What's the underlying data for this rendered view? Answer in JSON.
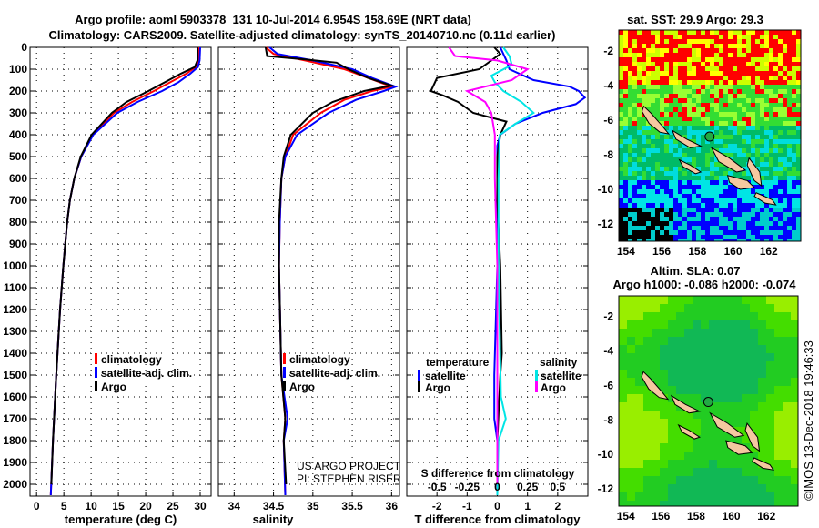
{
  "title_line1": "Argo profile: aoml 5903378_131 10-Jul-2014 6.954S 158.69E (NRT data)",
  "title_line2": "Climatology: CARS2009. Satellite-adjusted climatology: synTS_20140710.nc (0.11d earlier)",
  "colors": {
    "climatology": "#ff0000",
    "satellite": "#0000ff",
    "argo": "#000000",
    "sal_satellite": "#00e5e5",
    "sal_argo": "#ff00ff"
  },
  "depth_ticks": [
    0,
    100,
    200,
    300,
    400,
    500,
    600,
    700,
    800,
    900,
    1000,
    1100,
    1200,
    1300,
    1400,
    1500,
    1600,
    1700,
    1800,
    1900,
    2000
  ],
  "chart_data": [
    {
      "type": "line",
      "name": "temperature-profile",
      "xlabel": "temperature (deg C)",
      "ylabel": "depth",
      "xlim": [
        -1.2,
        32
      ],
      "ylim": [
        2050,
        0
      ],
      "xticks": [
        0,
        5,
        10,
        15,
        20,
        25,
        30
      ],
      "legend": [
        "climatology",
        "satellite-adj. clim.",
        "Argo"
      ],
      "series": [
        {
          "name": "climatology",
          "color": "#ff0000",
          "depth": [
            0,
            60,
            90,
            120,
            160,
            200,
            250,
            300,
            400,
            500,
            600,
            700,
            800,
            1000,
            1200,
            1500,
            1800,
            2050
          ],
          "values": [
            29.8,
            29.7,
            29.2,
            27.5,
            24.5,
            21.5,
            17.5,
            14.2,
            10.3,
            8.2,
            6.9,
            6.1,
            5.6,
            4.9,
            4.3,
            3.6,
            3.0,
            2.6
          ]
        },
        {
          "name": "satellite-adj. clim.",
          "color": "#0000ff",
          "depth": [
            0,
            60,
            90,
            120,
            160,
            200,
            250,
            300,
            400,
            500,
            600,
            700,
            800,
            1000,
            1200,
            1500,
            1800,
            2050
          ],
          "values": [
            30.0,
            29.9,
            29.6,
            28.2,
            26.0,
            23.0,
            18.5,
            14.8,
            10.4,
            8.2,
            6.9,
            6.1,
            5.6,
            4.9,
            4.3,
            3.6,
            3.0,
            2.6
          ]
        },
        {
          "name": "Argo",
          "color": "#000000",
          "depth": [
            0,
            60,
            90,
            120,
            160,
            200,
            250,
            300,
            400,
            500,
            600,
            700,
            800,
            1000,
            1200,
            1500,
            1800,
            2000
          ],
          "values": [
            29.5,
            29.5,
            29.0,
            26.5,
            23.5,
            20.5,
            16.5,
            13.8,
            10.1,
            8.1,
            6.9,
            6.1,
            5.6,
            4.9,
            4.3,
            3.6,
            3.0,
            2.7
          ]
        }
      ]
    },
    {
      "type": "line",
      "name": "salinity-profile",
      "xlabel": "salinity",
      "ylabel": "depth",
      "xlim": [
        33.8,
        36.1
      ],
      "ylim": [
        2050,
        0
      ],
      "xticks": [
        34,
        34.5,
        35,
        35.5,
        36
      ],
      "legend": [
        "climatology",
        "satellite-adj. clim.",
        "Argo"
      ],
      "annotation": [
        "US ARGO PROJECT",
        "PI: STEPHEN RISER"
      ],
      "series": [
        {
          "name": "climatology",
          "color": "#ff0000",
          "depth": [
            0,
            30,
            60,
            100,
            140,
            180,
            200,
            240,
            300,
            400,
            500,
            600,
            800,
            1000,
            1500,
            1700,
            1800,
            2050
          ],
          "values": [
            34.4,
            34.5,
            34.9,
            35.4,
            35.7,
            36.0,
            35.75,
            35.4,
            35.1,
            34.75,
            34.65,
            34.6,
            34.58,
            34.57,
            34.6,
            34.65,
            34.63,
            34.65
          ]
        },
        {
          "name": "satellite-adj. clim.",
          "color": "#0000ff",
          "depth": [
            0,
            30,
            60,
            100,
            140,
            180,
            200,
            240,
            300,
            400,
            500,
            600,
            800,
            1000,
            1500,
            1700,
            1800,
            2050
          ],
          "values": [
            34.45,
            34.55,
            35.0,
            35.5,
            35.75,
            36.05,
            35.9,
            35.55,
            35.2,
            34.8,
            34.65,
            34.6,
            34.58,
            34.57,
            34.6,
            34.68,
            34.63,
            34.65
          ]
        },
        {
          "name": "Argo",
          "color": "#000000",
          "depth": [
            0,
            40,
            55,
            70,
            100,
            140,
            175,
            200,
            250,
            300,
            400,
            500,
            600,
            800,
            1000,
            1500,
            1700,
            1800,
            2000
          ],
          "values": [
            34.4,
            34.42,
            34.9,
            35.3,
            35.45,
            35.7,
            36.0,
            35.65,
            35.25,
            35.0,
            34.72,
            34.63,
            34.6,
            34.57,
            34.57,
            34.6,
            34.65,
            34.63,
            34.66
          ]
        }
      ]
    },
    {
      "type": "line",
      "name": "difference-profile",
      "xlabel": "T difference from climatology",
      "xlabel2": "S difference from climatology",
      "xlim": [
        -3,
        3
      ],
      "ylim": [
        2050,
        0
      ],
      "xticks": [
        -2,
        -1,
        0,
        1,
        2
      ],
      "xticks_s": [
        -0.5,
        -0.25,
        0,
        0.25,
        0.5
      ],
      "s_to_t_scale": 4,
      "legend_t_title": "temperature",
      "legend_s_title": "salinity",
      "legend_t": [
        "satellite",
        "Argo"
      ],
      "legend_s": [
        "satellite",
        "Argo"
      ],
      "series": [
        {
          "name": "T satellite",
          "color": "#0000ff",
          "depth": [
            0,
            60,
            100,
            150,
            180,
            200,
            230,
            260,
            300,
            350,
            400,
            450,
            500,
            700,
            1000,
            1500,
            1700,
            1800,
            2050
          ],
          "values": [
            0.1,
            0.3,
            0.4,
            1.2,
            2.4,
            2.7,
            2.9,
            2.6,
            1.5,
            0.6,
            0.1,
            0,
            0,
            0,
            0,
            -0.1,
            -0.1,
            0,
            0
          ]
        },
        {
          "name": "T Argo",
          "color": "#000000",
          "depth": [
            0,
            30,
            60,
            100,
            140,
            170,
            200,
            220,
            250,
            300,
            340,
            400,
            500,
            700,
            1000,
            1400,
            1500,
            1800,
            2000
          ],
          "values": [
            -0.1,
            0.1,
            -0.2,
            -0.6,
            -2.0,
            -2.1,
            -2.2,
            -1.8,
            -1.3,
            -0.8,
            0.3,
            0.1,
            0,
            0,
            0.1,
            0.15,
            0.1,
            0,
            0
          ]
        },
        {
          "name": "S satellite",
          "color": "#00e5e5",
          "depth": [
            0,
            40,
            80,
            130,
            160,
            200,
            250,
            300,
            350,
            400,
            600,
            1000,
            1600,
            1700,
            1750,
            1800,
            2050
          ],
          "values": [
            0.05,
            0.1,
            0.12,
            -0.05,
            -0.02,
            0.05,
            0.2,
            0.3,
            0.15,
            0.02,
            0.01,
            0.01,
            0.03,
            0.07,
            0.04,
            0.01,
            0.0
          ]
        },
        {
          "name": "S Argo",
          "color": "#ff00ff",
          "depth": [
            0,
            40,
            60,
            100,
            150,
            200,
            250,
            300,
            400,
            600,
            1000,
            1500,
            1800,
            2000
          ],
          "values": [
            -0.4,
            -0.35,
            0.0,
            0.25,
            0.12,
            -0.25,
            -0.1,
            -0.05,
            -0.02,
            -0.02,
            0,
            0,
            0,
            0
          ]
        }
      ]
    },
    {
      "type": "heatmap",
      "name": "sst-map",
      "title": "sat. SST: 29.9 Argo: 29.3",
      "xticks": [
        154,
        156,
        158,
        160,
        162
      ],
      "yticks": [
        -2,
        -4,
        -6,
        -8,
        -10,
        -12
      ],
      "xlim": [
        153.6,
        163.8
      ],
      "ylim": [
        -13,
        -0.8
      ],
      "argo_position": {
        "lon": 158.69,
        "lat": -6.954
      }
    },
    {
      "type": "heatmap",
      "name": "sla-map",
      "title1": "Altim. SLA: 0.07",
      "title2": "Argo h1000: -0.086 h2000: -0.074",
      "xticks": [
        154,
        156,
        158,
        160,
        162
      ],
      "yticks": [
        -2,
        -4,
        -6,
        -8,
        -10,
        -12
      ],
      "xlim": [
        153.6,
        163.8
      ],
      "ylim": [
        -13,
        -0.8
      ],
      "argo_position": {
        "lon": 158.69,
        "lat": -6.954
      }
    }
  ],
  "credit": "©IMOS 13-Dec-2018 19:46:33"
}
